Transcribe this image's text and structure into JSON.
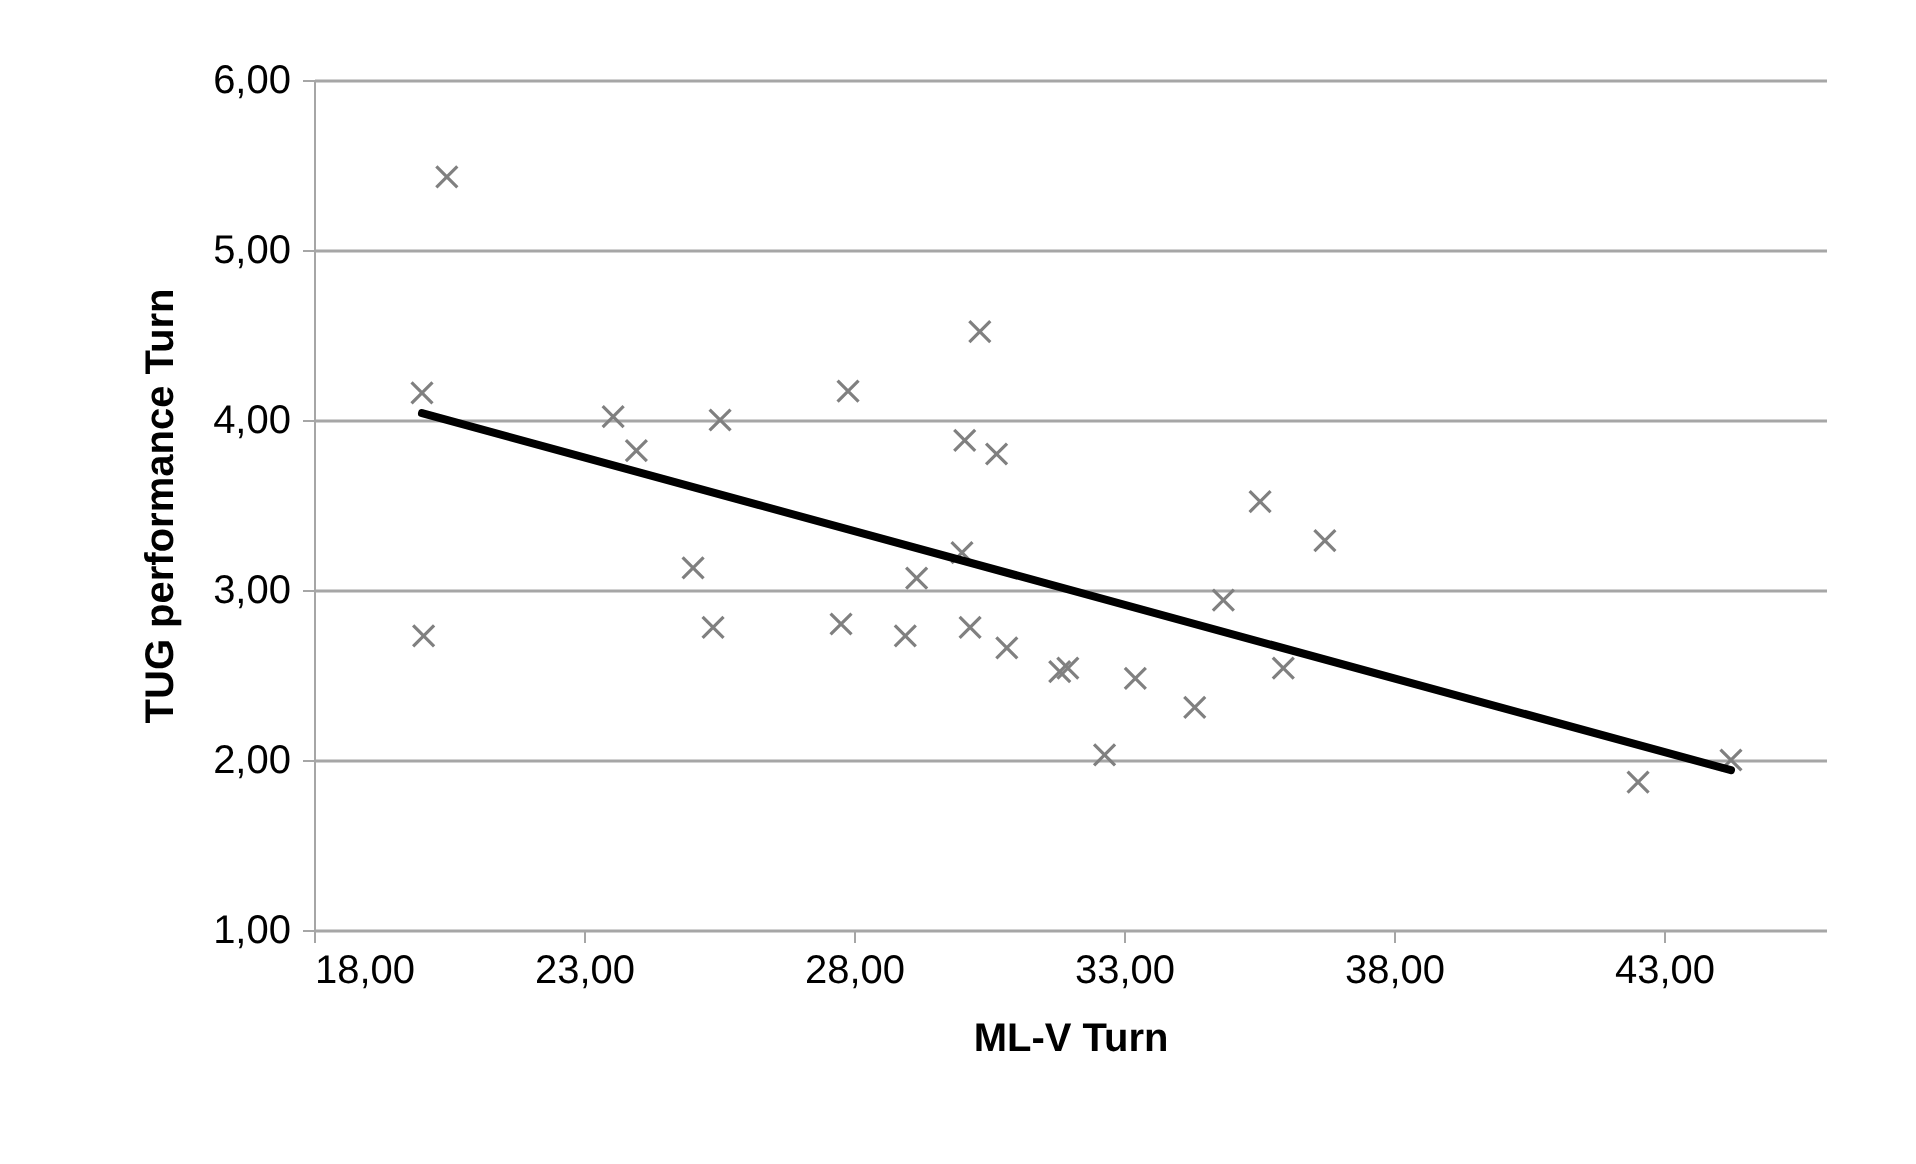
{
  "chart_data": {
    "type": "scatter",
    "xlabel": "ML-V Turn",
    "ylabel": "TUG performance Turn",
    "xlim": [
      18,
      46
    ],
    "ylim": [
      1,
      6
    ],
    "xticks": [
      {
        "value": 18,
        "label": "18,00"
      },
      {
        "value": 23,
        "label": "23,00"
      },
      {
        "value": 28,
        "label": "28,00"
      },
      {
        "value": 33,
        "label": "33,00"
      },
      {
        "value": 38,
        "label": "38,00"
      },
      {
        "value": 43,
        "label": "43,00"
      }
    ],
    "yticks": [
      {
        "value": 1,
        "label": "1,00"
      },
      {
        "value": 2,
        "label": "2,00"
      },
      {
        "value": 3,
        "label": "3,00"
      },
      {
        "value": 4,
        "label": "4,00"
      },
      {
        "value": 5,
        "label": "5,00"
      },
      {
        "value": 6,
        "label": "6,00"
      }
    ],
    "grid": "y",
    "marker": "cross",
    "series": [
      {
        "color": "#808080",
        "x": [
          20.46,
          20.0,
          23.54,
          23.97,
          25.52,
          27.89,
          30.33,
          30.05,
          30.64,
          30.0,
          20.03,
          25.02,
          25.39,
          27.76,
          29.16,
          28.95,
          30.15,
          30.83,
          31.81,
          31.96,
          32.64,
          33.21,
          34.31,
          34.84,
          35.52,
          36.72,
          35.95,
          42.52,
          44.24
        ],
        "values": [
          5.43,
          4.16,
          4.02,
          3.82,
          4.0,
          4.17,
          4.52,
          3.88,
          3.8,
          3.22,
          2.73,
          3.13,
          2.78,
          2.8,
          3.07,
          2.73,
          2.78,
          2.66,
          2.52,
          2.54,
          2.03,
          2.48,
          2.31,
          2.94,
          3.52,
          3.29,
          2.54,
          1.87,
          2.0
        ]
      },
      {
        "type": "line",
        "marker": "none",
        "color": "#000000",
        "x": [
          20.0,
          44.24
        ],
        "values": [
          4.04,
          1.94
        ]
      }
    ]
  }
}
